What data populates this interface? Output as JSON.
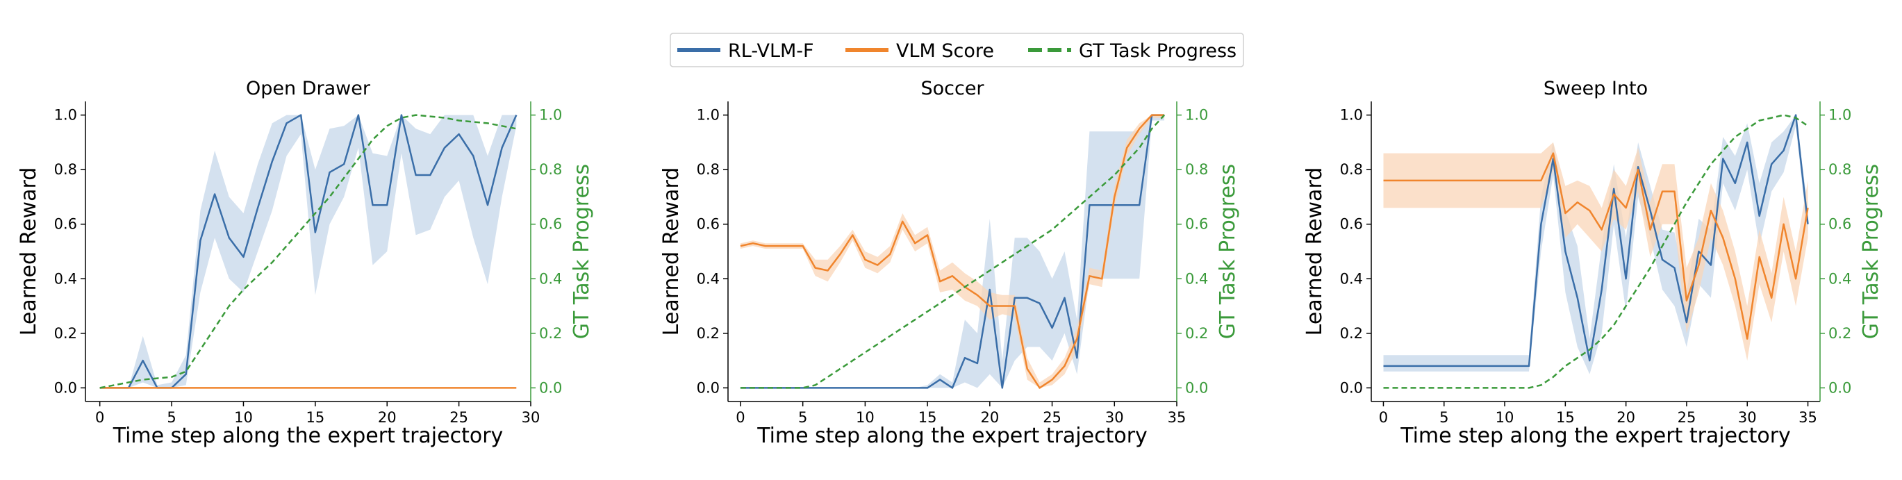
{
  "legend": {
    "entries": [
      {
        "label": "RL-VLM-F",
        "color": "#3a6ea8",
        "style": "solid"
      },
      {
        "label": "VLM Score",
        "color": "#f0852d",
        "style": "solid"
      },
      {
        "label": "GT Task Progress",
        "color": "#3a9a3a",
        "style": "dashed"
      }
    ]
  },
  "colors": {
    "rl": "#3a6ea8",
    "rl_band": "#c5d7ea",
    "vlm": "#f0852d",
    "vlm_band": "#f9d6b8",
    "gt": "#3a9a3a"
  },
  "chart_data": [
    {
      "type": "line",
      "title": "Open Drawer",
      "xlabel": "Time step along the expert trajectory",
      "ylabel": "Learned Reward",
      "y2label": "GT Task Progress",
      "xlim": [
        -1,
        30
      ],
      "ylim": [
        -0.05,
        1.05
      ],
      "y2lim": [
        -0.05,
        1.05
      ],
      "xticks": [
        0,
        5,
        10,
        15,
        20,
        25,
        30
      ],
      "yticks": [
        0.0,
        0.2,
        0.4,
        0.6,
        0.8,
        1.0
      ],
      "y2ticks": [
        0.0,
        0.2,
        0.4,
        0.6,
        0.8,
        1.0
      ],
      "x": [
        0,
        1,
        2,
        3,
        4,
        5,
        6,
        7,
        8,
        9,
        10,
        11,
        12,
        13,
        14,
        15,
        16,
        17,
        18,
        19,
        20,
        21,
        22,
        23,
        24,
        25,
        26,
        27,
        28,
        29
      ],
      "series": [
        {
          "name": "RL-VLM-F",
          "values": [
            0,
            0,
            0,
            0.1,
            0,
            0,
            0.05,
            0.54,
            0.71,
            0.55,
            0.48,
            0.66,
            0.83,
            0.97,
            1.0,
            0.57,
            0.79,
            0.82,
            1.0,
            0.67,
            0.67,
            1.0,
            0.78,
            0.78,
            0.88,
            0.93,
            0.85,
            0.67,
            0.88,
            1.0
          ],
          "lower": [
            0,
            0,
            0,
            0.02,
            0,
            0,
            0.01,
            0.35,
            0.55,
            0.4,
            0.35,
            0.5,
            0.65,
            0.85,
            0.93,
            0.34,
            0.6,
            0.7,
            0.88,
            0.45,
            0.5,
            0.86,
            0.56,
            0.58,
            0.7,
            0.76,
            0.55,
            0.38,
            0.7,
            0.96
          ],
          "upper": [
            0,
            0,
            0,
            0.19,
            0.01,
            0.02,
            0.12,
            0.65,
            0.87,
            0.7,
            0.64,
            0.82,
            0.97,
            1.0,
            1.0,
            0.8,
            0.95,
            0.96,
            1.0,
            0.86,
            0.85,
            1.0,
            0.95,
            0.93,
            1.0,
            1.0,
            1.0,
            0.85,
            1.0,
            1.0
          ]
        },
        {
          "name": "VLM Score",
          "values": [
            0,
            0,
            0,
            0,
            0,
            0,
            0,
            0,
            0,
            0,
            0,
            0,
            0,
            0,
            0,
            0,
            0,
            0,
            0,
            0,
            0,
            0,
            0,
            0,
            0,
            0,
            0,
            0,
            0,
            0
          ]
        },
        {
          "name": "GT Task Progress",
          "axis": "right",
          "values": [
            0,
            0.01,
            0.02,
            0.03,
            0.035,
            0.04,
            0.06,
            0.14,
            0.22,
            0.3,
            0.36,
            0.41,
            0.46,
            0.52,
            0.58,
            0.64,
            0.7,
            0.77,
            0.84,
            0.91,
            0.96,
            0.99,
            1.0,
            0.995,
            0.99,
            0.98,
            0.975,
            0.97,
            0.96,
            0.95
          ]
        }
      ]
    },
    {
      "type": "line",
      "title": "Soccer",
      "xlabel": "Time step along the expert trajectory",
      "ylabel": "Learned Reward",
      "y2label": "GT Task Progress",
      "xlim": [
        -1,
        35
      ],
      "ylim": [
        -0.05,
        1.05
      ],
      "y2lim": [
        -0.05,
        1.05
      ],
      "xticks": [
        0,
        5,
        10,
        15,
        20,
        25,
        30,
        35
      ],
      "yticks": [
        0.0,
        0.2,
        0.4,
        0.6,
        0.8,
        1.0
      ],
      "y2ticks": [
        0.0,
        0.2,
        0.4,
        0.6,
        0.8,
        1.0
      ],
      "x": [
        0,
        1,
        2,
        3,
        4,
        5,
        6,
        7,
        8,
        9,
        10,
        11,
        12,
        13,
        14,
        15,
        16,
        17,
        18,
        19,
        20,
        21,
        22,
        23,
        24,
        25,
        26,
        27,
        28,
        29,
        30,
        31,
        32,
        33,
        34
      ],
      "series": [
        {
          "name": "RL-VLM-F",
          "values": [
            0,
            0,
            0,
            0,
            0,
            0,
            0,
            0,
            0,
            0,
            0,
            0,
            0,
            0,
            0,
            0,
            0.03,
            0,
            0.11,
            0.09,
            0.36,
            0,
            0.33,
            0.33,
            0.31,
            0.22,
            0.33,
            0.11,
            0.67,
            0.67,
            0.67,
            0.67,
            0.67,
            1.0,
            1.0
          ],
          "lower": [
            0,
            0,
            0,
            0,
            0,
            0,
            0,
            0,
            0,
            0,
            0,
            0,
            0,
            0,
            0,
            0,
            0,
            0,
            0.02,
            0,
            0.05,
            0,
            0.1,
            0.15,
            0.15,
            0.1,
            0.2,
            0.05,
            0.4,
            0.4,
            0.4,
            0.4,
            0.4,
            0.98,
            0.98
          ],
          "upper": [
            0,
            0,
            0,
            0,
            0,
            0,
            0,
            0,
            0,
            0,
            0,
            0,
            0,
            0,
            0,
            0.01,
            0.05,
            0.02,
            0.25,
            0.2,
            0.62,
            0.1,
            0.55,
            0.55,
            0.5,
            0.4,
            0.5,
            0.25,
            0.94,
            0.94,
            0.94,
            0.94,
            0.94,
            1.0,
            1.0
          ]
        },
        {
          "name": "VLM Score",
          "values": [
            0.52,
            0.53,
            0.52,
            0.52,
            0.52,
            0.52,
            0.44,
            0.43,
            0.49,
            0.56,
            0.47,
            0.45,
            0.49,
            0.61,
            0.53,
            0.56,
            0.39,
            0.41,
            0.37,
            0.34,
            0.3,
            0.3,
            0.3,
            0.07,
            0.0,
            0.03,
            0.08,
            0.18,
            0.41,
            0.4,
            0.7,
            0.88,
            0.95,
            1.0,
            1.0
          ],
          "lower": [
            0.51,
            0.52,
            0.51,
            0.51,
            0.51,
            0.51,
            0.41,
            0.39,
            0.46,
            0.54,
            0.44,
            0.42,
            0.46,
            0.58,
            0.5,
            0.53,
            0.35,
            0.36,
            0.32,
            0.3,
            0.25,
            0.27,
            0.26,
            0.03,
            0,
            0.01,
            0.05,
            0.14,
            0.38,
            0.37,
            0.66,
            0.85,
            0.93,
            0.99,
            0.99
          ],
          "upper": [
            0.53,
            0.54,
            0.53,
            0.53,
            0.53,
            0.53,
            0.47,
            0.47,
            0.52,
            0.58,
            0.5,
            0.48,
            0.52,
            0.64,
            0.56,
            0.59,
            0.43,
            0.46,
            0.42,
            0.39,
            0.35,
            0.34,
            0.34,
            0.11,
            0.02,
            0.05,
            0.11,
            0.22,
            0.44,
            0.43,
            0.74,
            0.91,
            0.97,
            1.0,
            1.0
          ]
        },
        {
          "name": "GT Task Progress",
          "axis": "right",
          "values": [
            0,
            0,
            0,
            0,
            0,
            0,
            0.01,
            0.04,
            0.07,
            0.1,
            0.13,
            0.16,
            0.19,
            0.22,
            0.25,
            0.28,
            0.31,
            0.34,
            0.37,
            0.4,
            0.43,
            0.46,
            0.49,
            0.52,
            0.55,
            0.58,
            0.62,
            0.66,
            0.7,
            0.74,
            0.78,
            0.83,
            0.88,
            0.95,
            1.0
          ]
        }
      ]
    },
    {
      "type": "line",
      "title": "Sweep Into",
      "xlabel": "Time step along the expert trajectory",
      "ylabel": "Learned Reward",
      "y2label": "GT Task Progress",
      "xlim": [
        -1,
        36
      ],
      "ylim": [
        -0.05,
        1.05
      ],
      "y2lim": [
        -0.05,
        1.05
      ],
      "xticks": [
        0,
        5,
        10,
        15,
        20,
        25,
        30,
        35
      ],
      "yticks": [
        0.0,
        0.2,
        0.4,
        0.6,
        0.8,
        1.0
      ],
      "y2ticks": [
        0.0,
        0.2,
        0.4,
        0.6,
        0.8,
        1.0
      ],
      "x": [
        0,
        1,
        2,
        3,
        4,
        5,
        6,
        7,
        8,
        9,
        10,
        11,
        12,
        13,
        14,
        15,
        16,
        17,
        18,
        19,
        20,
        21,
        22,
        23,
        24,
        25,
        26,
        27,
        28,
        29,
        30,
        31,
        32,
        33,
        34,
        35
      ],
      "series": [
        {
          "name": "RL-VLM-F",
          "values": [
            0.08,
            0.08,
            0.08,
            0.08,
            0.08,
            0.08,
            0.08,
            0.08,
            0.08,
            0.08,
            0.08,
            0.08,
            0.08,
            0.6,
            0.84,
            0.5,
            0.33,
            0.1,
            0.36,
            0.73,
            0.4,
            0.81,
            0.65,
            0.47,
            0.44,
            0.24,
            0.5,
            0.45,
            0.84,
            0.75,
            0.9,
            0.63,
            0.82,
            0.87,
            1.0,
            0.6
          ],
          "lower": [
            0.06,
            0.06,
            0.06,
            0.06,
            0.06,
            0.06,
            0.06,
            0.06,
            0.06,
            0.06,
            0.06,
            0.06,
            0.06,
            0.5,
            0.78,
            0.35,
            0.15,
            0.05,
            0.2,
            0.6,
            0.28,
            0.7,
            0.55,
            0.36,
            0.3,
            0.15,
            0.38,
            0.33,
            0.75,
            0.65,
            0.8,
            0.52,
            0.72,
            0.79,
            0.96,
            0.55
          ],
          "upper": [
            0.12,
            0.12,
            0.12,
            0.12,
            0.12,
            0.12,
            0.12,
            0.12,
            0.12,
            0.12,
            0.12,
            0.12,
            0.12,
            0.7,
            0.9,
            0.65,
            0.52,
            0.18,
            0.52,
            0.82,
            0.55,
            0.9,
            0.74,
            0.58,
            0.57,
            0.35,
            0.62,
            0.58,
            0.92,
            0.85,
            0.97,
            0.75,
            0.9,
            0.94,
            1.0,
            0.66
          ]
        },
        {
          "name": "VLM Score",
          "values": [
            0.76,
            0.76,
            0.76,
            0.76,
            0.76,
            0.76,
            0.76,
            0.76,
            0.76,
            0.76,
            0.76,
            0.76,
            0.76,
            0.76,
            0.86,
            0.64,
            0.68,
            0.65,
            0.58,
            0.71,
            0.66,
            0.8,
            0.58,
            0.72,
            0.72,
            0.32,
            0.45,
            0.65,
            0.55,
            0.4,
            0.18,
            0.48,
            0.33,
            0.6,
            0.4,
            0.66
          ],
          "lower": [
            0.66,
            0.66,
            0.66,
            0.66,
            0.66,
            0.66,
            0.66,
            0.66,
            0.66,
            0.66,
            0.66,
            0.66,
            0.66,
            0.66,
            0.8,
            0.55,
            0.6,
            0.55,
            0.5,
            0.62,
            0.58,
            0.72,
            0.48,
            0.6,
            0.6,
            0.2,
            0.35,
            0.55,
            0.45,
            0.3,
            0.1,
            0.38,
            0.24,
            0.5,
            0.3,
            0.55
          ],
          "upper": [
            0.86,
            0.86,
            0.86,
            0.86,
            0.86,
            0.86,
            0.86,
            0.86,
            0.86,
            0.86,
            0.86,
            0.86,
            0.86,
            0.86,
            0.9,
            0.74,
            0.76,
            0.74,
            0.66,
            0.8,
            0.74,
            0.88,
            0.68,
            0.82,
            0.82,
            0.44,
            0.55,
            0.75,
            0.65,
            0.5,
            0.3,
            0.58,
            0.42,
            0.7,
            0.5,
            0.76
          ]
        },
        {
          "name": "GT Task Progress",
          "axis": "right",
          "values": [
            0,
            0,
            0,
            0,
            0,
            0,
            0,
            0,
            0,
            0,
            0,
            0,
            0,
            0.01,
            0.04,
            0.08,
            0.11,
            0.14,
            0.18,
            0.23,
            0.3,
            0.37,
            0.44,
            0.52,
            0.6,
            0.68,
            0.75,
            0.82,
            0.87,
            0.92,
            0.95,
            0.98,
            0.99,
            1.0,
            0.99,
            0.96
          ]
        }
      ]
    }
  ]
}
